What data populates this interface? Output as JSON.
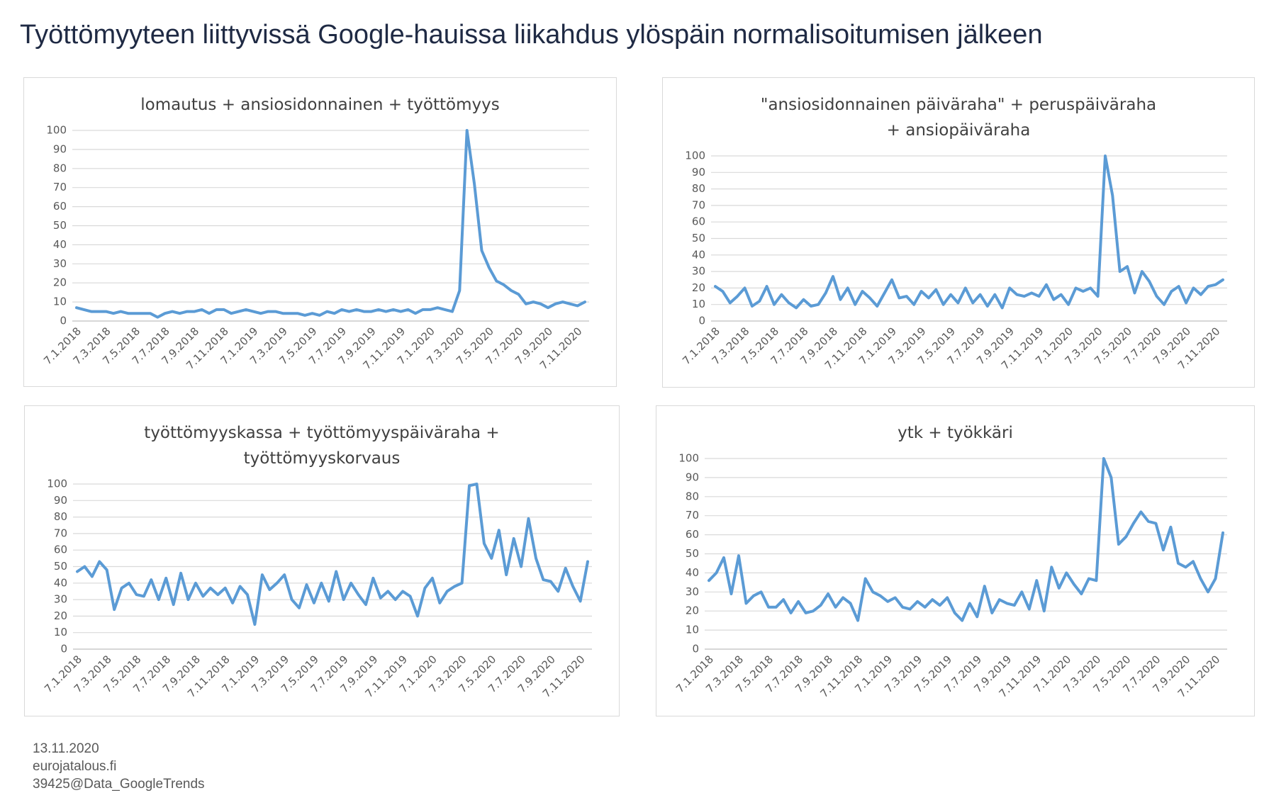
{
  "title": "Työttömyyteen liittyvissä Google-hauissa liikahdus ylöspäin normalisoitumisen jälkeen",
  "footer": [
    "13.11.2020",
    "eurojatalous.fi",
    "39425@Data_GoogleTrends"
  ],
  "chart_data": [
    {
      "type": "line",
      "title": "lomautus + ansiosidonnainen + työttömyys",
      "color": "#5b9bd5",
      "grid": true,
      "categories": [
        "7.1.2018",
        null,
        null,
        null,
        "7.3.2018",
        null,
        null,
        null,
        "7.5.2018",
        null,
        null,
        null,
        "7.7.2018",
        null,
        null,
        null,
        "7.9.2018",
        null,
        null,
        null,
        "7.11.2018",
        null,
        null,
        null,
        "7.1.2019",
        null,
        null,
        null,
        "7.3.2019",
        null,
        null,
        null,
        "7.5.2019",
        null,
        null,
        null,
        "7.7.2019",
        null,
        null,
        null,
        "7.9.2019",
        null,
        null,
        null,
        "7.11.2019",
        null,
        null,
        null,
        "7.1.2020",
        null,
        null,
        null,
        "7.3.2020",
        null,
        null,
        null,
        "7.5.2020",
        null,
        null,
        null,
        "7.7.2020",
        null,
        null,
        null,
        "7.9.2020",
        null,
        null,
        null,
        "7.11.2020",
        null
      ],
      "values": [
        7,
        6,
        5,
        5,
        5,
        4,
        5,
        4,
        4,
        4,
        4,
        2,
        4,
        5,
        4,
        5,
        5,
        6,
        4,
        6,
        6,
        4,
        5,
        6,
        5,
        4,
        5,
        5,
        4,
        4,
        4,
        3,
        4,
        3,
        5,
        4,
        6,
        5,
        6,
        5,
        5,
        6,
        5,
        6,
        5,
        6,
        4,
        6,
        6,
        7,
        6,
        5,
        16,
        100,
        72,
        37,
        28,
        21,
        19,
        16,
        14,
        9,
        10,
        9,
        7,
        9,
        10,
        9,
        8,
        10
      ],
      "ylim": [
        0,
        100
      ],
      "yticks": [
        0,
        10,
        20,
        30,
        40,
        50,
        60,
        70,
        80,
        90,
        100
      ]
    },
    {
      "type": "line",
      "title": "\"ansiosidonnainen päiväraha\" + peruspäiväraha + ansiopäiväraha",
      "color": "#5b9bd5",
      "grid": true,
      "categories": [
        "7.1.2018",
        null,
        null,
        null,
        "7.3.2018",
        null,
        null,
        null,
        "7.5.2018",
        null,
        null,
        null,
        "7.7.2018",
        null,
        null,
        null,
        "7.9.2018",
        null,
        null,
        null,
        "7.11.2018",
        null,
        null,
        null,
        "7.1.2019",
        null,
        null,
        null,
        "7.3.2019",
        null,
        null,
        null,
        "7.5.2019",
        null,
        null,
        null,
        "7.7.2019",
        null,
        null,
        null,
        "7.9.2019",
        null,
        null,
        null,
        "7.11.2019",
        null,
        null,
        null,
        "7.1.2020",
        null,
        null,
        null,
        "7.3.2020",
        null,
        null,
        null,
        "7.5.2020",
        null,
        null,
        null,
        "7.7.2020",
        null,
        null,
        null,
        "7.9.2020",
        null,
        null,
        null,
        "7.11.2020",
        null
      ],
      "values": [
        21,
        18,
        11,
        15,
        20,
        9,
        12,
        21,
        10,
        16,
        11,
        8,
        13,
        9,
        10,
        17,
        27,
        13,
        20,
        10,
        18,
        14,
        9,
        17,
        25,
        14,
        15,
        10,
        18,
        14,
        19,
        10,
        16,
        11,
        20,
        11,
        16,
        9,
        16,
        8,
        20,
        16,
        15,
        17,
        15,
        22,
        13,
        16,
        10,
        20,
        18,
        20,
        15,
        100,
        76,
        30,
        33,
        17,
        30,
        24,
        15,
        10,
        18,
        21,
        11,
        20,
        16,
        21,
        22,
        25
      ],
      "ylim": [
        0,
        100
      ],
      "yticks": [
        0,
        10,
        20,
        30,
        40,
        50,
        60,
        70,
        80,
        90,
        100
      ]
    },
    {
      "type": "line",
      "title": "työttömyyskassa + työttömyyspäiväraha + työttömyyskorvaus",
      "color": "#5b9bd5",
      "grid": true,
      "categories": [
        "7.1.2018",
        null,
        null,
        null,
        "7.3.2018",
        null,
        null,
        null,
        "7.5.2018",
        null,
        null,
        null,
        "7.7.2018",
        null,
        null,
        null,
        "7.9.2018",
        null,
        null,
        null,
        "7.11.2018",
        null,
        null,
        null,
        "7.1.2019",
        null,
        null,
        null,
        "7.3.2019",
        null,
        null,
        null,
        "7.5.2019",
        null,
        null,
        null,
        "7.7.2019",
        null,
        null,
        null,
        "7.9.2019",
        null,
        null,
        null,
        "7.11.2019",
        null,
        null,
        null,
        "7.1.2020",
        null,
        null,
        null,
        "7.3.2020",
        null,
        null,
        null,
        "7.5.2020",
        null,
        null,
        null,
        "7.7.2020",
        null,
        null,
        null,
        "7.9.2020",
        null,
        null,
        null,
        "7.11.2020",
        null
      ],
      "values": [
        47,
        50,
        44,
        53,
        48,
        24,
        37,
        40,
        33,
        32,
        42,
        30,
        43,
        27,
        46,
        30,
        40,
        32,
        37,
        33,
        37,
        28,
        38,
        33,
        15,
        45,
        36,
        40,
        45,
        30,
        25,
        39,
        28,
        40,
        29,
        47,
        30,
        40,
        33,
        27,
        43,
        31,
        35,
        30,
        35,
        32,
        20,
        37,
        43,
        28,
        35,
        38,
        40,
        99,
        100,
        64,
        55,
        72,
        45,
        67,
        50,
        79,
        55,
        42,
        41,
        35,
        49,
        38,
        29,
        53
      ],
      "ylim": [
        0,
        100
      ],
      "yticks": [
        0,
        10,
        20,
        30,
        40,
        50,
        60,
        70,
        80,
        90,
        100
      ]
    },
    {
      "type": "line",
      "title": "ytk + työkkäri",
      "color": "#5b9bd5",
      "grid": true,
      "categories": [
        "7.1.2018",
        null,
        null,
        null,
        "7.3.2018",
        null,
        null,
        null,
        "7.5.2018",
        null,
        null,
        null,
        "7.7.2018",
        null,
        null,
        null,
        "7.9.2018",
        null,
        null,
        null,
        "7.11.2018",
        null,
        null,
        null,
        "7.1.2019",
        null,
        null,
        null,
        "7.3.2019",
        null,
        null,
        null,
        "7.5.2019",
        null,
        null,
        null,
        "7.7.2019",
        null,
        null,
        null,
        "7.9.2019",
        null,
        null,
        null,
        "7.11.2019",
        null,
        null,
        null,
        "7.1.2020",
        null,
        null,
        null,
        "7.3.2020",
        null,
        null,
        null,
        "7.5.2020",
        null,
        null,
        null,
        "7.7.2020",
        null,
        null,
        null,
        "7.9.2020",
        null,
        null,
        null,
        "7.11.2020",
        null
      ],
      "values": [
        36,
        40,
        48,
        29,
        49,
        24,
        28,
        30,
        22,
        22,
        26,
        19,
        25,
        19,
        20,
        23,
        29,
        22,
        27,
        24,
        15,
        37,
        30,
        28,
        25,
        27,
        22,
        21,
        25,
        22,
        26,
        23,
        27,
        19,
        15,
        24,
        17,
        33,
        19,
        26,
        24,
        23,
        30,
        21,
        36,
        20,
        43,
        32,
        40,
        34,
        29,
        37,
        36,
        100,
        90,
        55,
        59,
        66,
        72,
        67,
        66,
        52,
        64,
        45,
        43,
        46,
        37,
        30,
        37,
        61
      ],
      "ylim": [
        0,
        100
      ],
      "yticks": [
        0,
        10,
        20,
        30,
        40,
        50,
        60,
        70,
        80,
        90,
        100
      ]
    }
  ]
}
